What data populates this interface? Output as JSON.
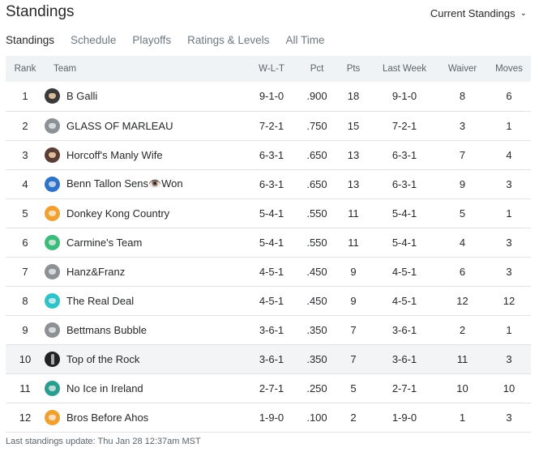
{
  "header": {
    "title": "Standings",
    "view_select": "Current Standings"
  },
  "tabs": [
    {
      "label": "Standings",
      "active": true
    },
    {
      "label": "Schedule",
      "active": false
    },
    {
      "label": "Playoffs",
      "active": false
    },
    {
      "label": "Ratings & Levels",
      "active": false
    },
    {
      "label": "All Time",
      "active": false
    }
  ],
  "columns": [
    "Rank",
    "Team",
    "W-L-T",
    "Pct",
    "Pts",
    "Last Week",
    "Waiver",
    "Moves"
  ],
  "rows": [
    {
      "rank": "1",
      "team": "B Galli",
      "wlt": "9-1-0",
      "pct": ".900",
      "pts": "18",
      "last_week": "9-1-0",
      "waiver": "8",
      "moves": "6",
      "avatar_color": "#3a3a3a",
      "avatar_icon": "photo-avatar-icon"
    },
    {
      "rank": "2",
      "team": "GLASS OF MARLEAU",
      "wlt": "7-2-1",
      "pct": ".750",
      "pts": "15",
      "last_week": "7-2-1",
      "waiver": "3",
      "moves": "1",
      "avatar_color": "#8c9196",
      "avatar_icon": "default-avatar-icon"
    },
    {
      "rank": "3",
      "team": "Horcoff's Manly Wife",
      "wlt": "6-3-1",
      "pct": ".650",
      "pts": "13",
      "last_week": "6-3-1",
      "waiver": "7",
      "moves": "4",
      "avatar_color": "#5a3e36",
      "avatar_icon": "photo-avatar-icon"
    },
    {
      "rank": "4",
      "team": "Benn Tallon Sens👁️Won",
      "wlt": "6-3-1",
      "pct": ".650",
      "pts": "13",
      "last_week": "6-3-1",
      "waiver": "9",
      "moves": "3",
      "avatar_color": "#2f73c9",
      "avatar_icon": "team-avatar-icon"
    },
    {
      "rank": "5",
      "team": "Donkey Kong Country",
      "wlt": "5-4-1",
      "pct": ".550",
      "pts": "11",
      "last_week": "5-4-1",
      "waiver": "5",
      "moves": "1",
      "avatar_color": "#f0a030",
      "avatar_icon": "team-avatar-icon"
    },
    {
      "rank": "6",
      "team": "Carmine's Team",
      "wlt": "5-4-1",
      "pct": ".550",
      "pts": "11",
      "last_week": "5-4-1",
      "waiver": "4",
      "moves": "3",
      "avatar_color": "#3dbb7a",
      "avatar_icon": "team-avatar-icon"
    },
    {
      "rank": "7",
      "team": "Hanz&Franz",
      "wlt": "4-5-1",
      "pct": ".450",
      "pts": "9",
      "last_week": "4-5-1",
      "waiver": "6",
      "moves": "3",
      "avatar_color": "#8c9196",
      "avatar_icon": "default-avatar-icon"
    },
    {
      "rank": "8",
      "team": "The Real Deal",
      "wlt": "4-5-1",
      "pct": ".450",
      "pts": "9",
      "last_week": "4-5-1",
      "waiver": "12",
      "moves": "12",
      "avatar_color": "#2fc2c8",
      "avatar_icon": "team-avatar-icon"
    },
    {
      "rank": "9",
      "team": "Bettmans Bubble",
      "wlt": "3-6-1",
      "pct": ".350",
      "pts": "7",
      "last_week": "3-6-1",
      "waiver": "2",
      "moves": "1",
      "avatar_color": "#8c9196",
      "avatar_icon": "default-avatar-icon"
    },
    {
      "rank": "10",
      "team": "Top of the Rock",
      "wlt": "3-6-1",
      "pct": ".350",
      "pts": "7",
      "last_week": "3-6-1",
      "waiver": "11",
      "moves": "3",
      "avatar_color": "#222222",
      "avatar_icon": "tower-avatar-icon",
      "highlight": true
    },
    {
      "rank": "11",
      "team": "No Ice in Ireland",
      "wlt": "2-7-1",
      "pct": ".250",
      "pts": "5",
      "last_week": "2-7-1",
      "waiver": "10",
      "moves": "10",
      "avatar_color": "#2a9d8f",
      "avatar_icon": "team-avatar-icon"
    },
    {
      "rank": "12",
      "team": "Bros Before Ahos",
      "wlt": "1-9-0",
      "pct": ".100",
      "pts": "2",
      "last_week": "1-9-0",
      "waiver": "1",
      "moves": "3",
      "avatar_color": "#f0a030",
      "avatar_icon": "team-avatar-icon"
    }
  ],
  "footer": "Last standings update: Thu Jan 28 12:37am MST"
}
